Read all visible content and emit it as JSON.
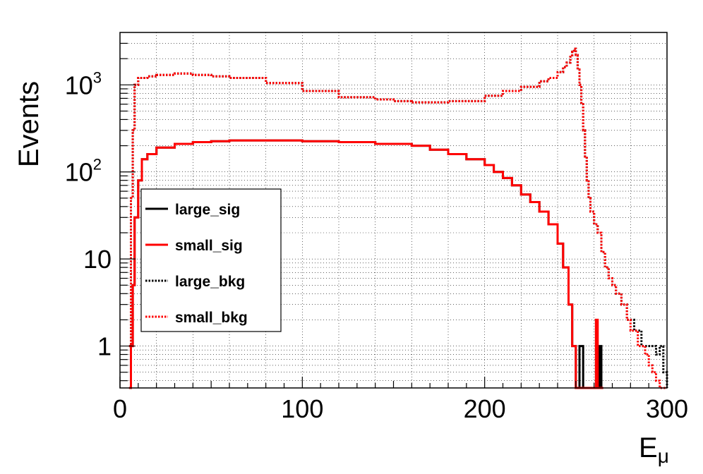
{
  "chart_data": {
    "type": "line",
    "title": "",
    "xlabel": "E",
    "xlabel_sub": "μ",
    "ylabel": "Events",
    "xlim": [
      0,
      300
    ],
    "ylim": [
      0.33,
      4000
    ],
    "yscale": "log",
    "grid": true,
    "legend_position": "left-middle",
    "x_ticks": [
      {
        "value": 0,
        "label": "0"
      },
      {
        "value": 100,
        "label": "100"
      },
      {
        "value": 200,
        "label": "200"
      },
      {
        "value": 300,
        "label": "300"
      }
    ],
    "y_ticks": [
      {
        "value": 1,
        "label": "1",
        "exp": ""
      },
      {
        "value": 10,
        "label": "10",
        "exp": ""
      },
      {
        "value": 100,
        "label": "10",
        "exp": "2"
      },
      {
        "value": 1000,
        "label": "10",
        "exp": "3"
      }
    ],
    "series": [
      {
        "name": "large_sig",
        "color": "#000000",
        "style": "solid",
        "x": [
          5,
          6,
          7,
          8,
          10,
          12,
          15,
          20,
          30,
          40,
          50,
          60,
          80,
          100,
          120,
          140,
          160,
          170,
          180,
          190,
          200,
          205,
          210,
          215,
          220,
          225,
          230,
          235,
          240,
          243,
          246,
          248,
          250,
          252,
          253,
          254,
          255,
          256,
          257,
          258,
          260,
          262,
          263,
          264,
          265
        ],
        "y": [
          0.33,
          1,
          5,
          30,
          80,
          140,
          160,
          190,
          210,
          220,
          225,
          230,
          230,
          225,
          220,
          210,
          200,
          180,
          160,
          140,
          120,
          100,
          85,
          70,
          55,
          45,
          35,
          25,
          15,
          8,
          3,
          1,
          0.33,
          1,
          1,
          0.33,
          0.33,
          0.33,
          0.33,
          0.33,
          0.33,
          0.33,
          1,
          0.33,
          0.33
        ]
      },
      {
        "name": "small_sig",
        "color": "#ff0000",
        "style": "solid",
        "x": [
          5,
          6,
          7,
          8,
          10,
          12,
          15,
          20,
          30,
          40,
          50,
          60,
          80,
          100,
          120,
          140,
          160,
          170,
          180,
          190,
          200,
          205,
          210,
          215,
          220,
          225,
          230,
          235,
          240,
          243,
          246,
          248,
          250,
          252,
          255,
          258,
          260,
          261,
          262,
          263,
          265
        ],
        "y": [
          0.33,
          1,
          5,
          30,
          80,
          140,
          160,
          190,
          210,
          220,
          225,
          230,
          230,
          225,
          220,
          210,
          200,
          180,
          160,
          140,
          120,
          100,
          85,
          70,
          55,
          45,
          35,
          25,
          15,
          8,
          3,
          1,
          0.33,
          0.33,
          0.33,
          0.33,
          0.33,
          2,
          0.33,
          0.33,
          0.33
        ]
      },
      {
        "name": "large_bkg",
        "color": "#000000",
        "style": "dotted",
        "x": [
          5,
          6,
          7,
          8,
          10,
          15,
          20,
          30,
          40,
          50,
          60,
          80,
          100,
          120,
          140,
          150,
          160,
          180,
          200,
          210,
          220,
          230,
          235,
          240,
          243,
          245,
          247,
          248,
          249,
          250,
          251,
          252,
          253,
          254,
          255,
          256,
          257,
          258,
          260,
          262,
          264,
          266,
          268,
          270,
          272,
          275,
          278,
          280,
          282,
          284,
          286,
          288,
          290,
          292,
          294,
          296,
          298,
          300
        ],
        "y": [
          1,
          50,
          300,
          1000,
          1200,
          1250,
          1300,
          1350,
          1300,
          1250,
          1200,
          1050,
          850,
          720,
          680,
          650,
          630,
          650,
          750,
          850,
          950,
          1100,
          1200,
          1400,
          1600,
          1800,
          2100,
          2400,
          2600,
          2200,
          1500,
          1000,
          600,
          300,
          150,
          80,
          50,
          35,
          25,
          20,
          12,
          8,
          6,
          5,
          4,
          3,
          2,
          2,
          1.5,
          1.5,
          1,
          1,
          1,
          1,
          0.8,
          1,
          0.5,
          0.33
        ]
      },
      {
        "name": "small_bkg",
        "color": "#ff0000",
        "style": "dotted",
        "x": [
          5,
          6,
          7,
          8,
          10,
          15,
          20,
          30,
          40,
          50,
          60,
          80,
          100,
          120,
          140,
          150,
          160,
          180,
          200,
          210,
          220,
          230,
          235,
          240,
          243,
          245,
          247,
          248,
          249,
          250,
          251,
          252,
          253,
          254,
          255,
          256,
          257,
          258,
          260,
          262,
          264,
          266,
          268,
          270,
          272,
          275,
          278,
          280,
          282,
          284,
          286,
          288,
          290,
          292,
          294,
          296,
          298,
          300
        ],
        "y": [
          1,
          50,
          300,
          1000,
          1200,
          1250,
          1300,
          1350,
          1300,
          1250,
          1200,
          1050,
          850,
          720,
          680,
          650,
          630,
          650,
          750,
          850,
          950,
          1100,
          1200,
          1400,
          1600,
          1800,
          2100,
          2400,
          2600,
          2200,
          1500,
          1000,
          600,
          300,
          150,
          80,
          50,
          35,
          25,
          20,
          12,
          8,
          6,
          5,
          4,
          3,
          2,
          1.5,
          1.5,
          1,
          1,
          0.8,
          0.6,
          0.5,
          0.4,
          0.33,
          0.33,
          0.33
        ]
      }
    ]
  }
}
